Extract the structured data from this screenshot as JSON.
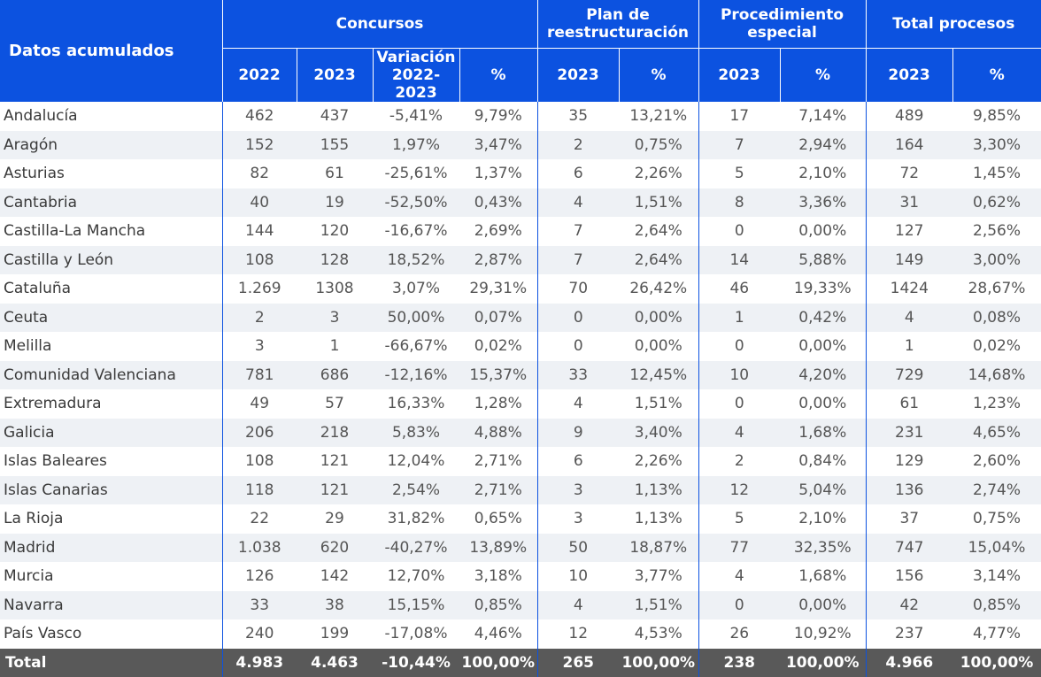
{
  "header": {
    "corner": "Datos acumulados",
    "groups": {
      "concursos": "Concursos",
      "plan": "Plan de reestructuración",
      "procedimiento": "Procedimiento especial",
      "total": "Total procesos"
    },
    "cols": [
      "2022",
      "2023",
      "Variación 2022-2023",
      "%",
      "2023",
      "%",
      "2023",
      "%",
      "2023",
      "%"
    ]
  },
  "rows": [
    {
      "name": "Andalucía",
      "v": [
        "462",
        "437",
        "-5,41%",
        "9,79%",
        "35",
        "13,21%",
        "17",
        "7,14%",
        "489",
        "9,85%"
      ]
    },
    {
      "name": "Aragón",
      "v": [
        "152",
        "155",
        "1,97%",
        "3,47%",
        "2",
        "0,75%",
        "7",
        "2,94%",
        "164",
        "3,30%"
      ]
    },
    {
      "name": "Asturias",
      "v": [
        "82",
        "61",
        "-25,61%",
        "1,37%",
        "6",
        "2,26%",
        "5",
        "2,10%",
        "72",
        "1,45%"
      ]
    },
    {
      "name": "Cantabria",
      "v": [
        "40",
        "19",
        "-52,50%",
        "0,43%",
        "4",
        "1,51%",
        "8",
        "3,36%",
        "31",
        "0,62%"
      ]
    },
    {
      "name": "Castilla-La Mancha",
      "v": [
        "144",
        "120",
        "-16,67%",
        "2,69%",
        "7",
        "2,64%",
        "0",
        "0,00%",
        "127",
        "2,56%"
      ]
    },
    {
      "name": "Castilla y León",
      "v": [
        "108",
        "128",
        "18,52%",
        "2,87%",
        "7",
        "2,64%",
        "14",
        "5,88%",
        "149",
        "3,00%"
      ]
    },
    {
      "name": "Cataluña",
      "v": [
        "1.269",
        "1308",
        "3,07%",
        "29,31%",
        "70",
        "26,42%",
        "46",
        "19,33%",
        "1424",
        "28,67%"
      ]
    },
    {
      "name": "Ceuta",
      "v": [
        "2",
        "3",
        "50,00%",
        "0,07%",
        "0",
        "0,00%",
        "1",
        "0,42%",
        "4",
        "0,08%"
      ]
    },
    {
      "name": "Melilla",
      "v": [
        "3",
        "1",
        "-66,67%",
        "0,02%",
        "0",
        "0,00%",
        "0",
        "0,00%",
        "1",
        "0,02%"
      ]
    },
    {
      "name": "Comunidad Valenciana",
      "v": [
        "781",
        "686",
        "-12,16%",
        "15,37%",
        "33",
        "12,45%",
        "10",
        "4,20%",
        "729",
        "14,68%"
      ]
    },
    {
      "name": "Extremadura",
      "v": [
        "49",
        "57",
        "16,33%",
        "1,28%",
        "4",
        "1,51%",
        "0",
        "0,00%",
        "61",
        "1,23%"
      ]
    },
    {
      "name": "Galicia",
      "v": [
        "206",
        "218",
        "5,83%",
        "4,88%",
        "9",
        "3,40%",
        "4",
        "1,68%",
        "231",
        "4,65%"
      ]
    },
    {
      "name": "Islas Baleares",
      "v": [
        "108",
        "121",
        "12,04%",
        "2,71%",
        "6",
        "2,26%",
        "2",
        "0,84%",
        "129",
        "2,60%"
      ]
    },
    {
      "name": "Islas Canarias",
      "v": [
        "118",
        "121",
        "2,54%",
        "2,71%",
        "3",
        "1,13%",
        "12",
        "5,04%",
        "136",
        "2,74%"
      ]
    },
    {
      "name": "La Rioja",
      "v": [
        "22",
        "29",
        "31,82%",
        "0,65%",
        "3",
        "1,13%",
        "5",
        "2,10%",
        "37",
        "0,75%"
      ]
    },
    {
      "name": "Madrid",
      "v": [
        "1.038",
        "620",
        "-40,27%",
        "13,89%",
        "50",
        "18,87%",
        "77",
        "32,35%",
        "747",
        "15,04%"
      ]
    },
    {
      "name": "Murcia",
      "v": [
        "126",
        "142",
        "12,70%",
        "3,18%",
        "10",
        "3,77%",
        "4",
        "1,68%",
        "156",
        "3,14%"
      ]
    },
    {
      "name": "Navarra",
      "v": [
        "33",
        "38",
        "15,15%",
        "0,85%",
        "4",
        "1,51%",
        "0",
        "0,00%",
        "42",
        "0,85%"
      ]
    },
    {
      "name": "País Vasco",
      "v": [
        "240",
        "199",
        "-17,08%",
        "4,46%",
        "12",
        "4,53%",
        "26",
        "10,92%",
        "237",
        "4,77%"
      ]
    }
  ],
  "total": {
    "name": "Total",
    "v": [
      "4.983",
      "4.463",
      "-10,44%",
      "100,00%",
      "265",
      "100,00%",
      "238",
      "100,00%",
      "4.966",
      "100,00%"
    ]
  }
}
